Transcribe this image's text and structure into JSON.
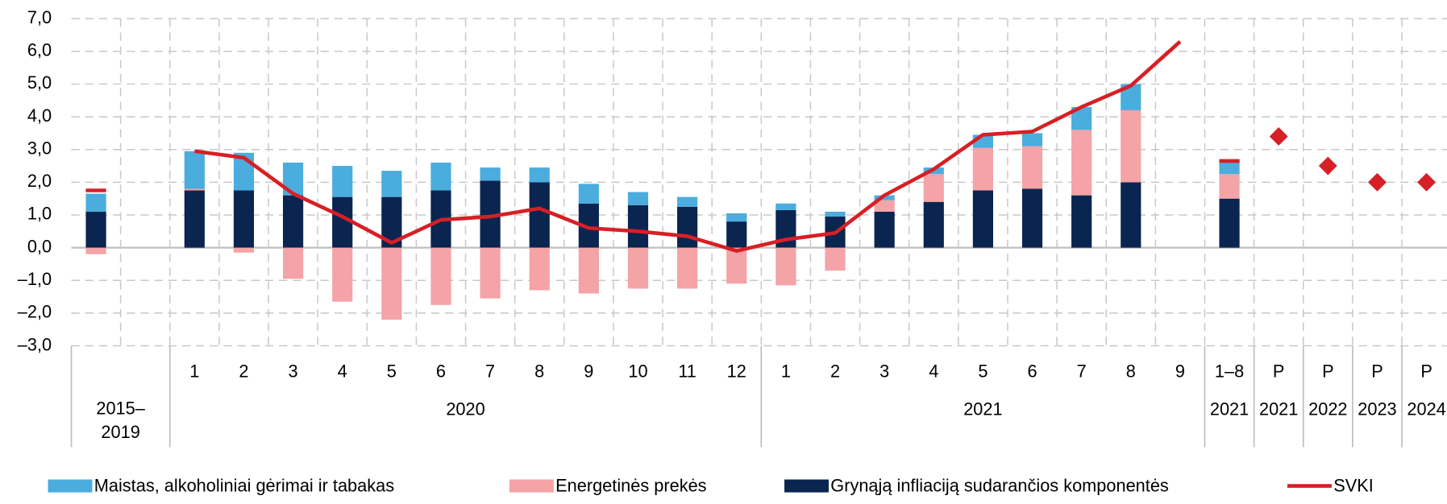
{
  "chart_data": {
    "type": "bar",
    "categories": [
      null,
      null,
      "1",
      "2",
      "3",
      "4",
      "5",
      "6",
      "7",
      "8",
      "9",
      "10",
      "11",
      "12",
      "1",
      "2",
      "3",
      "4",
      "5",
      "6",
      "7",
      "8",
      "9",
      "1–8",
      "P",
      "P",
      "P",
      "P"
    ],
    "groups": [
      {
        "label": "2015–2019",
        "span": 2
      },
      {
        "label": "2020",
        "span": 12
      },
      {
        "label": "2021",
        "span": 9
      },
      {
        "label": "2021",
        "span": 1
      },
      {
        "label": "2021",
        "span": 1
      },
      {
        "label": "2022",
        "span": 1
      },
      {
        "label": "2023",
        "span": 1
      },
      {
        "label": "2024",
        "span": 1
      }
    ],
    "series": [
      {
        "name": "Maistas, alkoholiniai gėrimai ir tabakas",
        "color": "#4bacde",
        "values": [
          0.55,
          null,
          1.15,
          1.15,
          1.0,
          0.95,
          0.8,
          0.85,
          0.4,
          0.45,
          0.6,
          0.4,
          0.3,
          0.25,
          0.2,
          0.15,
          0.15,
          0.2,
          0.4,
          0.4,
          0.7,
          0.8,
          null,
          0.4,
          null,
          null,
          null,
          null
        ]
      },
      {
        "name": "Energetinės prekės",
        "color": "#f4a3a6",
        "values": [
          -0.2,
          null,
          0.05,
          -0.15,
          -0.95,
          -1.65,
          -2.2,
          -1.75,
          -1.55,
          -1.3,
          -1.4,
          -1.25,
          -1.25,
          -1.1,
          -1.15,
          -0.7,
          0.35,
          0.85,
          1.3,
          1.3,
          2.0,
          2.2,
          null,
          0.75,
          null,
          null,
          null,
          null
        ]
      },
      {
        "name": "Grynąją infliaciją sudarančios komponentės",
        "color": "#0a2550",
        "values": [
          1.1,
          null,
          1.75,
          1.75,
          1.6,
          1.55,
          1.55,
          1.75,
          2.05,
          2.0,
          1.35,
          1.3,
          1.25,
          0.8,
          1.15,
          0.95,
          1.1,
          1.4,
          1.75,
          1.8,
          1.6,
          2.0,
          null,
          1.5,
          null,
          null,
          null,
          null
        ]
      },
      {
        "name": "SVKI",
        "color": "#d71f26",
        "type": "line",
        "values": [
          1.75,
          null,
          2.95,
          2.75,
          1.65,
          0.95,
          0.15,
          0.85,
          0.95,
          1.2,
          0.6,
          0.5,
          0.35,
          -0.1,
          0.25,
          0.45,
          1.6,
          2.4,
          3.45,
          3.55,
          4.3,
          4.95,
          6.3,
          2.65,
          3.4,
          2.5,
          2.0,
          2.0
        ]
      }
    ],
    "ylim": [
      -3,
      7
    ],
    "yticks": [
      {
        "value": -3,
        "label": "–3,0"
      },
      {
        "value": -2,
        "label": "–2,0"
      },
      {
        "value": -1,
        "label": "–1,0"
      },
      {
        "value": 0,
        "label": "0,0"
      },
      {
        "value": 1,
        "label": "1,0"
      },
      {
        "value": 2,
        "label": "2,0"
      },
      {
        "value": 3,
        "label": "3,0"
      },
      {
        "value": 4,
        "label": "4,0"
      },
      {
        "value": 5,
        "label": "5,0"
      },
      {
        "value": 6,
        "label": "6,0"
      },
      {
        "value": 7,
        "label": "7,0"
      }
    ],
    "grid": true,
    "legend": "bottom"
  }
}
